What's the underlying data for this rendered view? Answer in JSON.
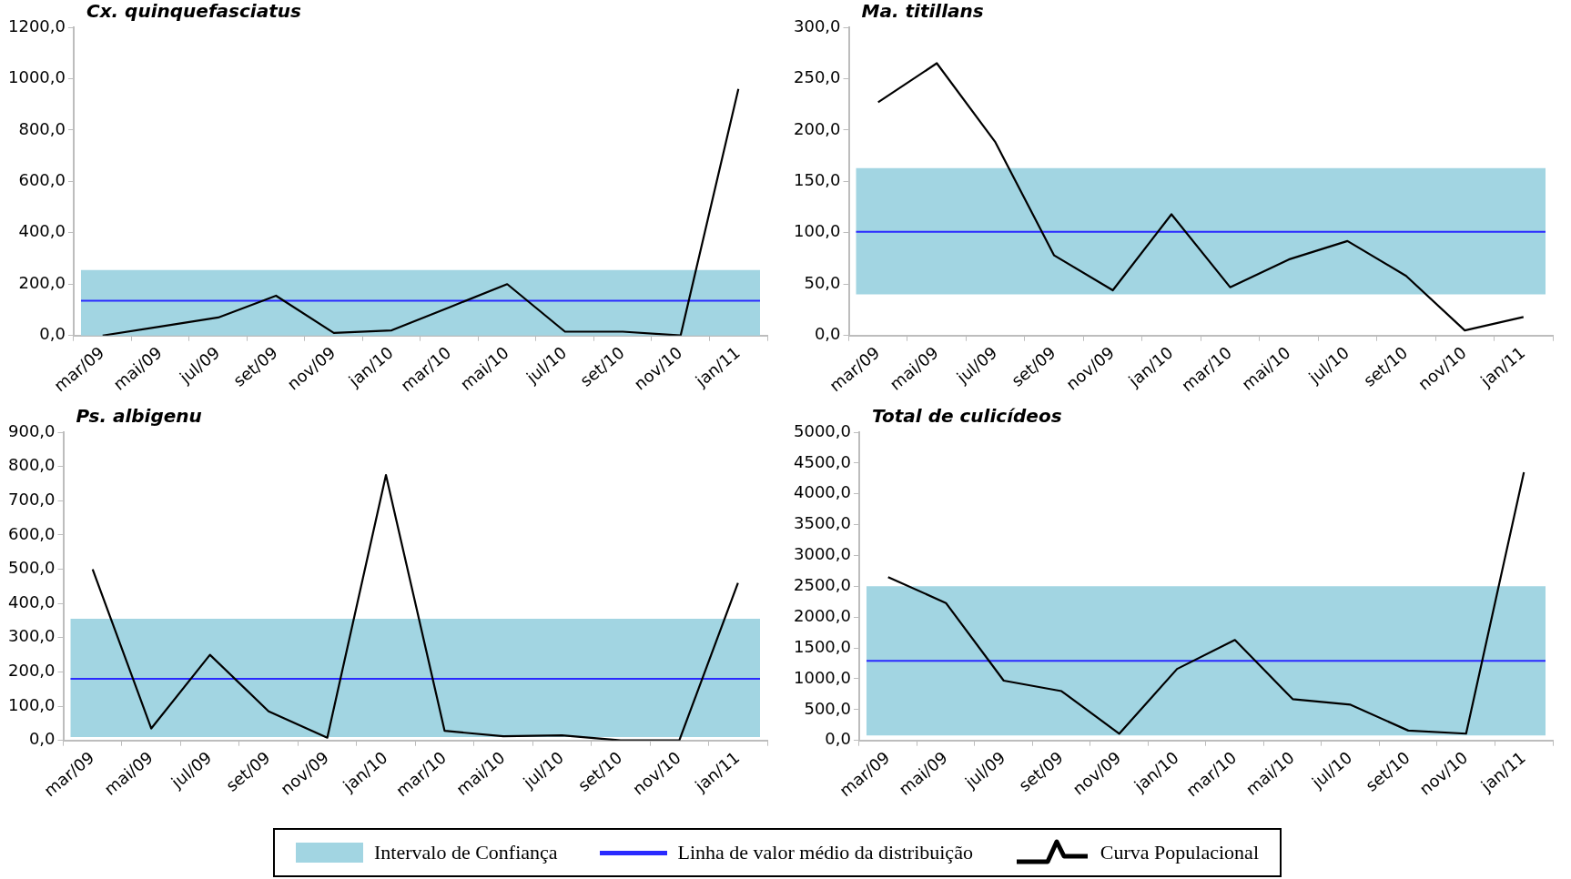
{
  "chart_data": [
    {
      "type": "line",
      "title": "Cx. quinquefasciatus",
      "categories": [
        "mar/09",
        "mai/09",
        "jul/09",
        "set/09",
        "nov/09",
        "jan/10",
        "mar/10",
        "mai/10",
        "jul/10",
        "set/10",
        "nov/10",
        "jan/11"
      ],
      "series": [
        {
          "color": "#000000",
          "values": [
            0,
            35,
            70,
            155,
            10,
            20,
            110,
            200,
            15,
            15,
            0,
            960
          ]
        }
      ],
      "ylim": [
        0,
        1200
      ],
      "yticks": [
        {
          "value": 0,
          "label": "0,0"
        },
        {
          "value": 200,
          "label": "200,0"
        },
        {
          "value": 400,
          "label": "400,0"
        },
        {
          "value": 600,
          "label": "600,0"
        },
        {
          "value": 800,
          "label": "800,0"
        },
        {
          "value": 1000,
          "label": "1000,0"
        },
        {
          "value": 1200,
          "label": "1200,0"
        }
      ],
      "bands": [
        {
          "axis": "y",
          "from": 0,
          "to": 255,
          "color": "#a2d5e2"
        }
      ],
      "ref_lines": [
        {
          "axis": "y",
          "value": 135,
          "color": "#2a2aff"
        }
      ],
      "grid": false,
      "marker": "none",
      "line_style": "solid"
    },
    {
      "type": "line",
      "title": "Ma. titillans",
      "categories": [
        "mar/09",
        "mai/09",
        "jul/09",
        "set/09",
        "nov/09",
        "jan/10",
        "mar/10",
        "mai/10",
        "jul/10",
        "set/10",
        "nov/10",
        "jan/11"
      ],
      "series": [
        {
          "color": "#000000",
          "values": [
            227,
            265,
            188,
            78,
            44,
            118,
            47,
            74,
            92,
            58,
            5,
            18
          ]
        }
      ],
      "ylim": [
        0,
        300
      ],
      "yticks": [
        {
          "value": 0,
          "label": "0,0"
        },
        {
          "value": 50,
          "label": "50,0"
        },
        {
          "value": 100,
          "label": "100,0"
        },
        {
          "value": 150,
          "label": "150,0"
        },
        {
          "value": 200,
          "label": "200,0"
        },
        {
          "value": 250,
          "label": "250,0"
        },
        {
          "value": 300,
          "label": "300,0"
        }
      ],
      "bands": [
        {
          "axis": "y",
          "from": 40,
          "to": 163,
          "color": "#a2d5e2"
        }
      ],
      "ref_lines": [
        {
          "axis": "y",
          "value": 101,
          "color": "#2a2aff"
        }
      ],
      "grid": false,
      "marker": "none",
      "line_style": "solid"
    },
    {
      "type": "line",
      "title": "Ps. albigenu",
      "categories": [
        "mar/09",
        "mai/09",
        "jul/09",
        "set/09",
        "nov/09",
        "jan/10",
        "mar/10",
        "mai/10",
        "jul/10",
        "set/10",
        "nov/10",
        "jan/11"
      ],
      "series": [
        {
          "color": "#000000",
          "values": [
            500,
            35,
            250,
            85,
            8,
            775,
            28,
            12,
            15,
            0,
            0,
            460
          ]
        }
      ],
      "ylim": [
        0,
        900
      ],
      "yticks": [
        {
          "value": 0,
          "label": "0,0"
        },
        {
          "value": 100,
          "label": "100,0"
        },
        {
          "value": 200,
          "label": "200,0"
        },
        {
          "value": 300,
          "label": "300,0"
        },
        {
          "value": 400,
          "label": "400,0"
        },
        {
          "value": 500,
          "label": "500,0"
        },
        {
          "value": 600,
          "label": "600,0"
        },
        {
          "value": 700,
          "label": "700,0"
        },
        {
          "value": 800,
          "label": "800,0"
        },
        {
          "value": 900,
          "label": "900,0"
        }
      ],
      "bands": [
        {
          "axis": "y",
          "from": 10,
          "to": 355,
          "color": "#a2d5e2"
        }
      ],
      "ref_lines": [
        {
          "axis": "y",
          "value": 180,
          "color": "#2a2aff"
        }
      ],
      "grid": false,
      "marker": "none",
      "line_style": "solid"
    },
    {
      "type": "line",
      "title": "Total de culicídeos",
      "categories": [
        "mar/09",
        "mai/09",
        "jul/09",
        "set/09",
        "nov/09",
        "jan/10",
        "mar/10",
        "mai/10",
        "jul/10",
        "set/10",
        "nov/10",
        "jan/11"
      ],
      "series": [
        {
          "name": "Curva Populacional",
          "color": "#000000",
          "values": [
            2650,
            2230,
            970,
            800,
            110,
            1160,
            1630,
            670,
            580,
            160,
            110,
            4350
          ]
        }
      ],
      "ylim": [
        0,
        5000
      ],
      "yticks": [
        {
          "value": 0,
          "label": "0,0"
        },
        {
          "value": 500,
          "label": "500,0"
        },
        {
          "value": 1000,
          "label": "1000,0"
        },
        {
          "value": 1500,
          "label": "1500,0"
        },
        {
          "value": 2000,
          "label": "2000,0"
        },
        {
          "value": 2500,
          "label": "2500,0"
        },
        {
          "value": 3000,
          "label": "3000,0"
        },
        {
          "value": 3500,
          "label": "3500,0"
        },
        {
          "value": 4000,
          "label": "4000,0"
        },
        {
          "value": 4500,
          "label": "4500,0"
        },
        {
          "value": 5000,
          "label": "5000,0"
        }
      ],
      "bands": [
        {
          "axis": "y",
          "from": 80,
          "to": 2500,
          "color": "#a2d5e2",
          "label": "Intervalo de Confiança"
        }
      ],
      "ref_lines": [
        {
          "axis": "y",
          "value": 1290,
          "color": "#2a2aff",
          "label": "Linha de valor médio da distribuição"
        }
      ],
      "grid": false,
      "legend": "bottom",
      "marker": "none",
      "line_style": "solid"
    }
  ]
}
